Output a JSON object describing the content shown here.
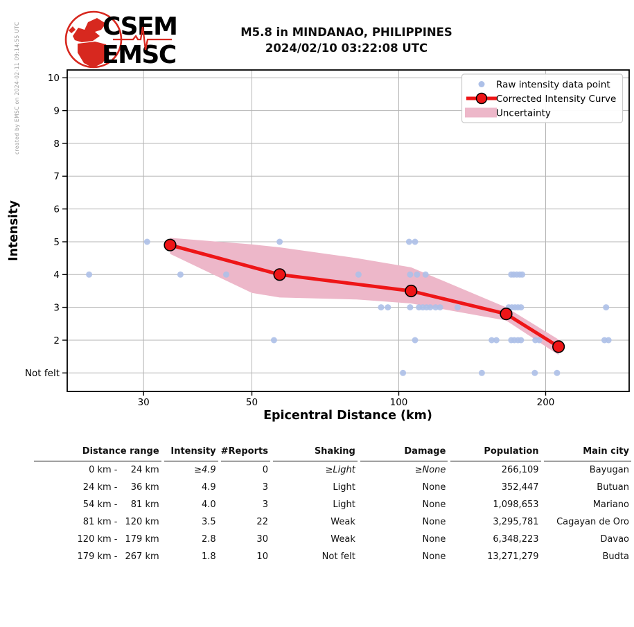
{
  "meta": {
    "watermark": "created by EMSC on 2024-02-11 09:14:55 UTC"
  },
  "header": {
    "logo": {
      "line1": "CSEM",
      "line2": "EMSC",
      "globe_color": "#d7281f",
      "text_color": "#241212"
    },
    "title_line1": "M5.8 in MINDANAO, PHILIPPINES",
    "title_line2": "2024/02/10 03:22:08 UTC"
  },
  "chart_data": {
    "type": "scatter",
    "title": "",
    "xlabel": "Epicentral Distance (km)",
    "ylabel": "Intensity",
    "x_scale": "log",
    "x_ticks": [
      30,
      50,
      100,
      200
    ],
    "x_range_km": [
      21,
      297
    ],
    "y_tick_values": [
      1,
      2,
      3,
      4,
      5,
      6,
      7,
      8,
      9,
      10
    ],
    "y_tick_labels": [
      "Not felt",
      "2",
      "3",
      "4",
      "5",
      "6",
      "7",
      "8",
      "9",
      "10"
    ],
    "grid": true,
    "legend_position": "upper right",
    "legend": [
      "Raw intensity data point",
      "Corrected Intensity Curve",
      "Uncertainty"
    ],
    "raw_points": [
      [
        30.5,
        5
      ],
      [
        57,
        5
      ],
      [
        105,
        5
      ],
      [
        108,
        5
      ],
      [
        23.2,
        4
      ],
      [
        35.7,
        4
      ],
      [
        44.3,
        4
      ],
      [
        82.7,
        4
      ],
      [
        105.5,
        4
      ],
      [
        109,
        4
      ],
      [
        113.5,
        4
      ],
      [
        170,
        4
      ],
      [
        172,
        4
      ],
      [
        174.5,
        4
      ],
      [
        177,
        4
      ],
      [
        179,
        4
      ],
      [
        92,
        3
      ],
      [
        95,
        3
      ],
      [
        105.5,
        3
      ],
      [
        110,
        3
      ],
      [
        112,
        3
      ],
      [
        114,
        3
      ],
      [
        116,
        3
      ],
      [
        119,
        3
      ],
      [
        121.5,
        3
      ],
      [
        132,
        3
      ],
      [
        168,
        3
      ],
      [
        170.5,
        3
      ],
      [
        173,
        3
      ],
      [
        175.5,
        3
      ],
      [
        178,
        3
      ],
      [
        266,
        3
      ],
      [
        55.5,
        2
      ],
      [
        108,
        2
      ],
      [
        155,
        2
      ],
      [
        158.5,
        2
      ],
      [
        170,
        2
      ],
      [
        172.5,
        2
      ],
      [
        175.5,
        2
      ],
      [
        178,
        2
      ],
      [
        190.5,
        2
      ],
      [
        194,
        2
      ],
      [
        264,
        2
      ],
      [
        269,
        2
      ],
      [
        102,
        1
      ],
      [
        148,
        1
      ],
      [
        190,
        1
      ],
      [
        211,
        1
      ]
    ],
    "corrected_curve": [
      [
        34,
        4.9
      ],
      [
        57,
        4.0
      ],
      [
        106,
        3.5
      ],
      [
        166,
        2.8
      ],
      [
        212.5,
        1.8
      ]
    ],
    "uncertainty_upper": [
      [
        34,
        5.12
      ],
      [
        50,
        4.92
      ],
      [
        57,
        4.83
      ],
      [
        82,
        4.5
      ],
      [
        106,
        4.22
      ],
      [
        166,
        3.0
      ],
      [
        212.5,
        2.02
      ]
    ],
    "uncertainty_lower": [
      [
        34,
        4.63
      ],
      [
        50,
        3.44
      ],
      [
        57,
        3.3
      ],
      [
        82,
        3.24
      ],
      [
        106,
        3.12
      ],
      [
        166,
        2.6
      ],
      [
        212.5,
        1.55
      ]
    ],
    "colors": {
      "raw_point": "#adc0e8",
      "curve": "#ee1517",
      "band": "#edb7c9",
      "grid": "#b5b5b5"
    }
  },
  "table": {
    "headers": [
      "Distance range",
      "Intensity",
      "#Reports",
      "Shaking",
      "Damage",
      "Population",
      "Main city"
    ],
    "rows": [
      {
        "range_from": "0 km",
        "range_to": "24 km",
        "intensity": "≥4.9",
        "reports": "0",
        "shaking": "≥Light",
        "damage": "≥None",
        "population": "266,109",
        "city": "Bayugan",
        "italic": true
      },
      {
        "range_from": "24 km",
        "range_to": "36 km",
        "intensity": "4.9",
        "reports": "3",
        "shaking": "Light",
        "damage": "None",
        "population": "352,447",
        "city": "Butuan",
        "italic": false
      },
      {
        "range_from": "54 km",
        "range_to": "81 km",
        "intensity": "4.0",
        "reports": "3",
        "shaking": "Light",
        "damage": "None",
        "population": "1,098,653",
        "city": "Mariano",
        "italic": false
      },
      {
        "range_from": "81 km",
        "range_to": "120 km",
        "intensity": "3.5",
        "reports": "22",
        "shaking": "Weak",
        "damage": "None",
        "population": "3,295,781",
        "city": "Cagayan de Oro",
        "italic": false
      },
      {
        "range_from": "120 km",
        "range_to": "179 km",
        "intensity": "2.8",
        "reports": "30",
        "shaking": "Weak",
        "damage": "None",
        "population": "6,348,223",
        "city": "Davao",
        "italic": false
      },
      {
        "range_from": "179 km",
        "range_to": "267 km",
        "intensity": "1.8",
        "reports": "10",
        "shaking": "Not felt",
        "damage": "None",
        "population": "13,271,279",
        "city": "Budta",
        "italic": false
      }
    ]
  }
}
